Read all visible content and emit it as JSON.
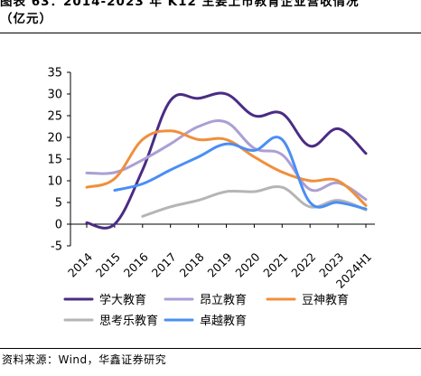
{
  "header": {
    "title_line1": "图表 63：2014-2023 年 K12 主要上市教育企业营收情况",
    "title_line2": "（亿元）"
  },
  "footer": {
    "source": "资料来源：Wind，华鑫证券研究"
  },
  "chart_data": {
    "type": "line",
    "title": "",
    "xlabel": "",
    "ylabel": "",
    "categories": [
      "2014",
      "2015",
      "2016",
      "2017",
      "2018",
      "2019",
      "2020",
      "2021",
      "2022",
      "2023",
      "2024H1"
    ],
    "ylim": [
      -5,
      35
    ],
    "yticks": [
      -5,
      0,
      5,
      10,
      15,
      20,
      25,
      30,
      35
    ],
    "grid": false,
    "legend": "bottom",
    "series": [
      {
        "name": "学大教育",
        "color": "#4a2c84",
        "values": [
          0.3,
          0.0,
          12.5,
          28.5,
          29.0,
          30.0,
          25.0,
          25.5,
          18.0,
          22.0,
          16.3
        ]
      },
      {
        "name": "昂立教育",
        "color": "#ab9fd4",
        "values": [
          11.8,
          11.9,
          14.8,
          18.5,
          22.5,
          23.5,
          17.5,
          16.0,
          8.0,
          9.5,
          5.7
        ]
      },
      {
        "name": "豆神教育",
        "color": "#f08f3c",
        "values": [
          8.5,
          10.5,
          19.5,
          21.5,
          19.5,
          19.5,
          15.5,
          12.0,
          10.0,
          10.0,
          4.3
        ]
      },
      {
        "name": "思考乐教育",
        "color": "#b5b5b5",
        "values": [
          null,
          null,
          1.8,
          4.0,
          5.5,
          7.5,
          7.5,
          8.5,
          4.0,
          5.5,
          3.3
        ]
      },
      {
        "name": "卓越教育",
        "color": "#4a8ef5",
        "values": [
          null,
          7.8,
          9.3,
          12.5,
          15.5,
          18.5,
          17.0,
          19.5,
          5.0,
          5.0,
          3.5
        ]
      }
    ]
  }
}
